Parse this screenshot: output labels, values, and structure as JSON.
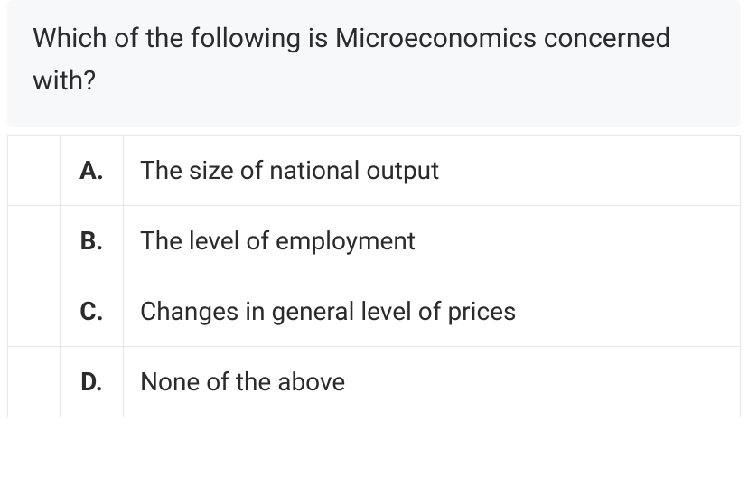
{
  "question": {
    "text": "Which of the following is Microeconomics concerned with?"
  },
  "options": [
    {
      "letter": "A.",
      "text": "The size of national output"
    },
    {
      "letter": "B.",
      "text": "The level of employment"
    },
    {
      "letter": "C.",
      "text": "Changes in general level of prices"
    },
    {
      "letter": "D.",
      "text": "None of the above"
    }
  ],
  "styling": {
    "question_bg": "#f7f8f9",
    "border_color": "#e5e6e8",
    "text_color": "#2b2b2b",
    "question_fontsize": 30,
    "option_fontsize": 28,
    "letter_fontweight": 700
  }
}
